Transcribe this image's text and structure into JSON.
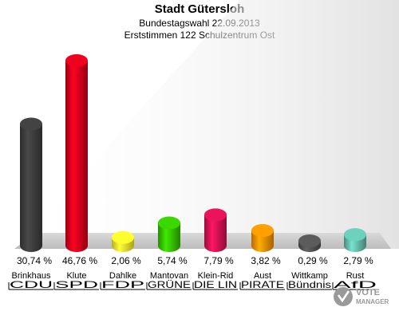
{
  "header": {
    "title": "Stadt Gütersloh",
    "subtitle": "Bundestagswahl 22.09.2013",
    "subtitle2": "Erststimmen 122 Schulzentrum Ost"
  },
  "watermark": {
    "text": "VOTE MANAGER"
  },
  "chart_data": {
    "type": "bar",
    "title": "Stadt Gütersloh",
    "subtitle": "Bundestagswahl 22.09.2013 — Erststimmen 122 Schulzentrum Ost",
    "categories": [
      "Brinkhaus",
      "Klute",
      "Dahlke",
      "Mantovan",
      "Klein-Rid",
      "Aust",
      "Wittkamp",
      "Rust"
    ],
    "parties": [
      "CDU",
      "SPD",
      "FDP",
      "GRÜNE",
      "DIE LIN",
      "PIRATE",
      "Bündnis",
      "AfD"
    ],
    "values": [
      30.74,
      46.76,
      2.06,
      5.74,
      7.79,
      3.82,
      0.29,
      2.79
    ],
    "value_labels": [
      "30,74 %",
      "46,76 %",
      "2,06 %",
      "5,74 %",
      "7,79 %",
      "3,82 %",
      "0,29 %",
      "2,79 %"
    ],
    "colors": [
      "#3a3a3a",
      "#d0001a",
      "#f5e52a",
      "#33bb00",
      "#cc1150",
      "#f58a00",
      "#505050",
      "#5fb6a4"
    ],
    "ylim": [
      0,
      50
    ],
    "grid": false,
    "legend": "none"
  }
}
